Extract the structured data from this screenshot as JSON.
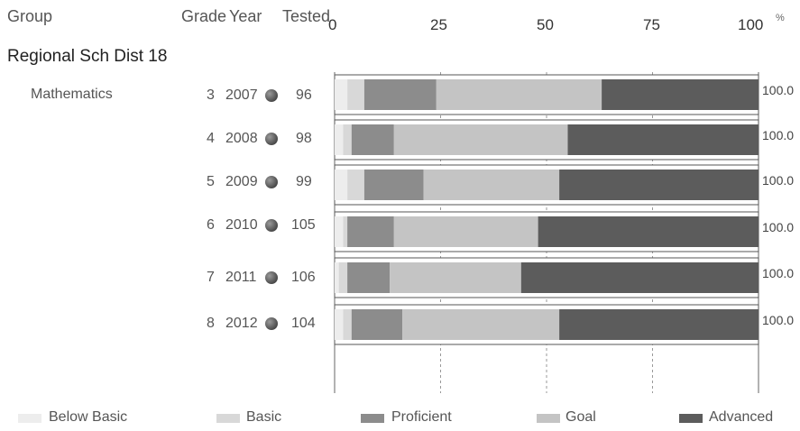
{
  "header": {
    "group": "Group",
    "grade": "Grade",
    "year": "Year",
    "tested": "Tested",
    "pct": "%"
  },
  "group_name": "Regional Sch Dist 18",
  "subject": "Mathematics",
  "rows": [
    {
      "grade": "3",
      "year": "2007",
      "tested": "96",
      "total": "100.0"
    },
    {
      "grade": "4",
      "year": "2008",
      "tested": "98",
      "total": "100.0"
    },
    {
      "grade": "5",
      "year": "2009",
      "tested": "99",
      "total": "100.0"
    },
    {
      "grade": "6",
      "year": "2010",
      "tested": "105",
      "total": "100.0"
    },
    {
      "grade": "7",
      "year": "2011",
      "tested": "106",
      "total": "100.0"
    },
    {
      "grade": "8",
      "year": "2012",
      "tested": "104",
      "total": "100.0"
    }
  ],
  "colors": {
    "Below Basic": "#ededed",
    "Basic": "#d8d8d8",
    "Proficient": "#8c8c8c",
    "Goal": "#c4c4c4",
    "Advanced": "#5c5c5c"
  },
  "chart_data": {
    "type": "bar",
    "orientation": "horizontal",
    "stacked": true,
    "xlim": [
      0,
      100
    ],
    "ticks": [
      "0",
      "25",
      "50",
      "75",
      "100"
    ],
    "categories": [
      "3 2007",
      "4 2008",
      "5 2009",
      "6 2010",
      "7 2011",
      "8 2012"
    ],
    "series": [
      {
        "name": "Below Basic",
        "values": [
          3,
          2,
          3,
          2,
          1,
          2
        ]
      },
      {
        "name": "Basic",
        "values": [
          4,
          2,
          4,
          1,
          2,
          2
        ]
      },
      {
        "name": "Proficient",
        "values": [
          17,
          10,
          14,
          11,
          10,
          12
        ]
      },
      {
        "name": "Goal",
        "values": [
          39,
          41,
          32,
          34,
          31,
          37
        ]
      },
      {
        "name": "Advanced",
        "values": [
          37,
          45,
          47,
          52,
          56,
          47
        ]
      }
    ],
    "totals": [
      100.0,
      100.0,
      100.0,
      100.0,
      100.0,
      100.0
    ],
    "grid": true,
    "legend_position": "bottom"
  }
}
